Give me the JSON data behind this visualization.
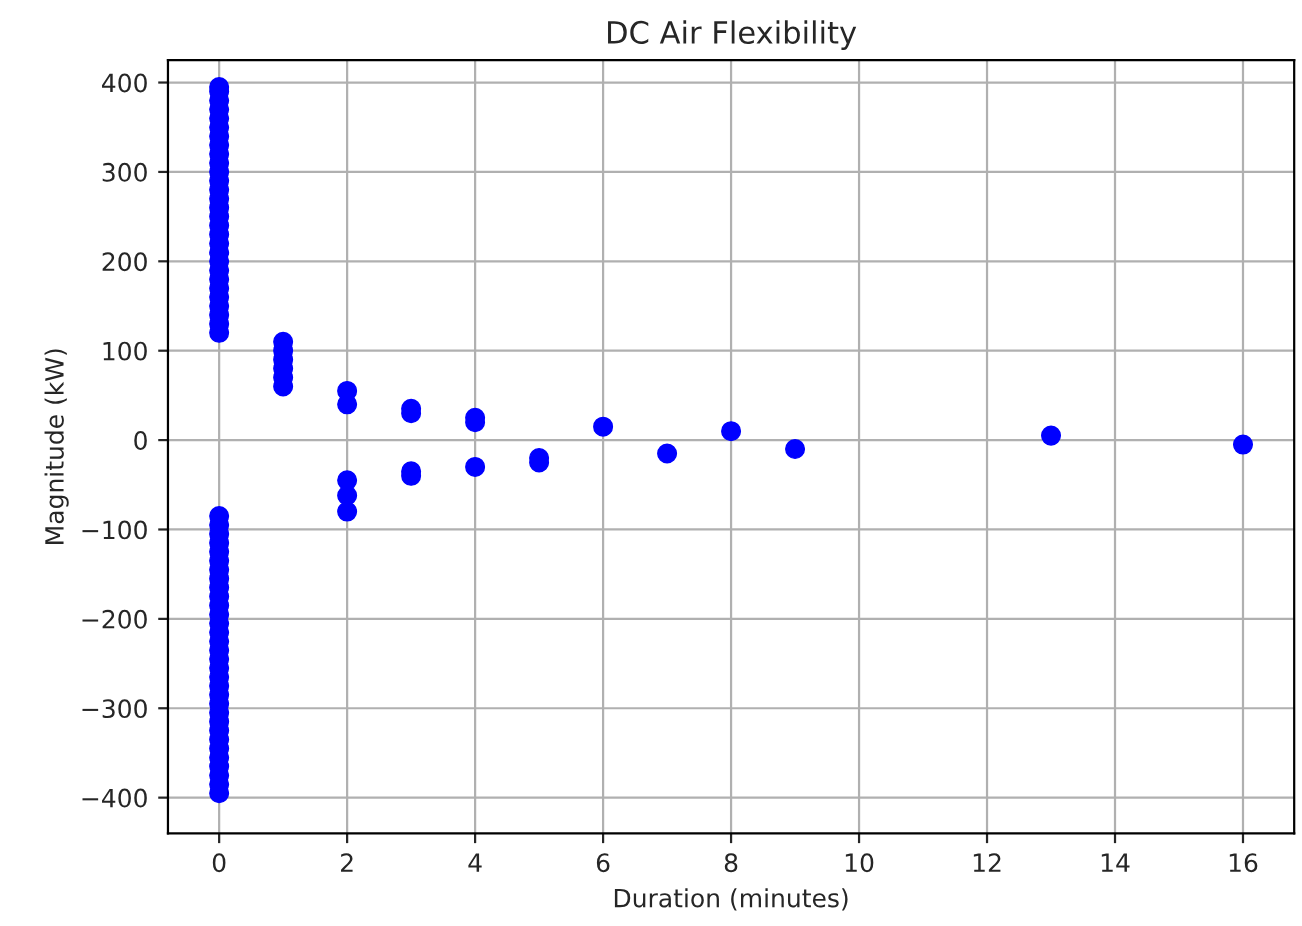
{
  "chart_data": {
    "type": "scatter",
    "title": "DC Air Flexibility",
    "xlabel": "Duration (minutes)",
    "ylabel": "Magnitude (kW)",
    "series": [
      {
        "color": "#0000ff",
        "x": [
          0,
          0,
          0,
          0,
          0,
          0,
          0,
          0,
          0,
          0,
          0,
          0,
          0,
          0,
          0,
          0,
          0,
          0,
          0,
          0,
          0,
          0,
          0,
          0,
          0,
          0,
          0,
          0,
          0,
          0,
          0,
          0,
          0,
          0,
          0,
          0,
          0,
          0,
          0,
          0,
          0,
          0,
          0,
          0,
          0,
          0,
          0,
          0,
          0,
          0,
          0,
          0,
          0,
          0,
          0,
          0,
          0,
          0,
          0,
          0,
          0,
          1,
          1,
          1,
          1,
          1,
          1,
          2,
          2,
          2,
          2,
          2,
          3,
          3,
          3,
          3,
          4,
          4,
          4,
          5,
          5,
          6,
          7,
          8,
          9,
          13,
          16
        ],
        "values": [
          120,
          130,
          140,
          150,
          160,
          170,
          180,
          190,
          200,
          210,
          220,
          230,
          240,
          250,
          260,
          270,
          280,
          290,
          300,
          310,
          320,
          330,
          340,
          350,
          360,
          370,
          380,
          390,
          395,
          -85,
          -95,
          -105,
          -115,
          -125,
          -135,
          -145,
          -155,
          -165,
          -175,
          -185,
          -195,
          -205,
          -215,
          -225,
          -235,
          -245,
          -255,
          -265,
          -275,
          -285,
          -295,
          -305,
          -315,
          -325,
          -335,
          -345,
          -355,
          -365,
          -375,
          -385,
          -395,
          60,
          70,
          80,
          90,
          100,
          110,
          40,
          55,
          -45,
          -62,
          -80,
          30,
          35,
          -35,
          -40,
          20,
          25,
          -30,
          -20,
          -25,
          15,
          -15,
          10,
          -10,
          5,
          -5
        ]
      }
    ],
    "xlim": [
      -0.8,
      16.8
    ],
    "ylim": [
      -440,
      425
    ],
    "xticks": [
      0,
      2,
      4,
      6,
      8,
      10,
      12,
      14,
      16
    ],
    "yticks": [
      {
        "value": -400,
        "label": "−400"
      },
      {
        "value": -300,
        "label": "−300"
      },
      {
        "value": -200,
        "label": "−200"
      },
      {
        "value": -100,
        "label": "−100"
      },
      0,
      100,
      200,
      300,
      400
    ],
    "grid": true,
    "marker": "circle",
    "legend": false
  }
}
